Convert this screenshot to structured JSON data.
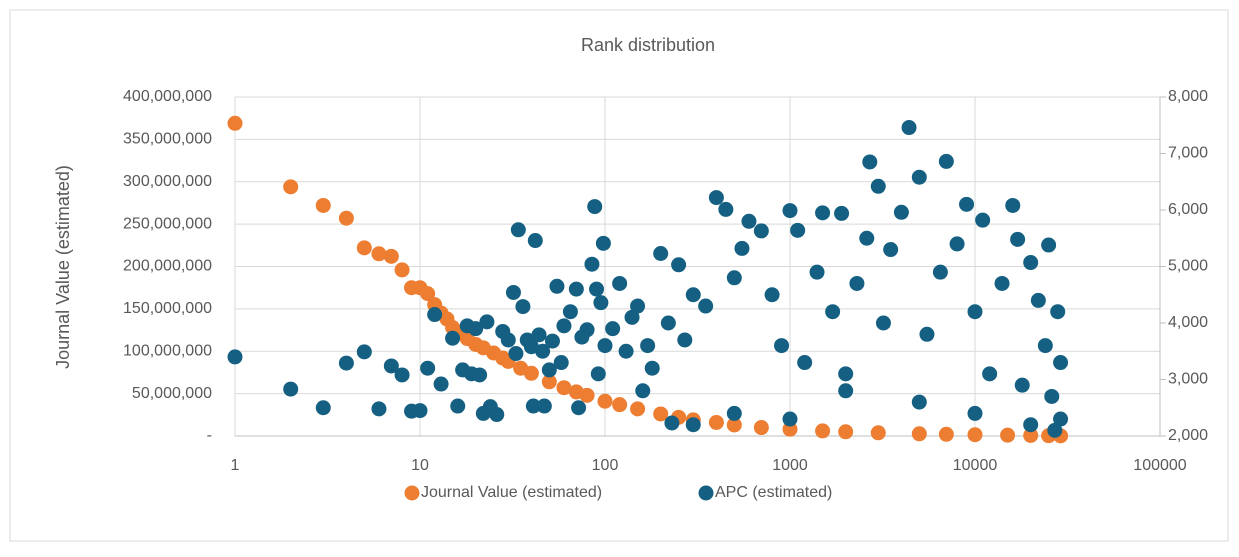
{
  "chart_data": {
    "type": "scatter",
    "title": "Rank distribution",
    "ylabel": "Journal Value (estimated)",
    "xlim": [
      1,
      100000
    ],
    "xscale": "log",
    "xticks": [
      1,
      10,
      100,
      1000,
      10000,
      100000
    ],
    "ylim": [
      0,
      400000000
    ],
    "yticks": [
      {
        "value": 0,
        "label": "-"
      },
      {
        "value": 50000000,
        "label": "50,000,000"
      },
      {
        "value": 100000000,
        "label": "100,000,000"
      },
      {
        "value": 150000000,
        "label": "150,000,000"
      },
      {
        "value": 200000000,
        "label": "200,000,000"
      },
      {
        "value": 250000000,
        "label": "250,000,000"
      },
      {
        "value": 300000000,
        "label": "300,000,000"
      },
      {
        "value": 350000000,
        "label": "350,000,000"
      },
      {
        "value": 400000000,
        "label": "400,000,000"
      }
    ],
    "y2lim": [
      2000,
      8000
    ],
    "y2ticks": [
      {
        "value": 2000,
        "label": "2,000"
      },
      {
        "value": 3000,
        "label": "3,000"
      },
      {
        "value": 4000,
        "label": "4,000"
      },
      {
        "value": 5000,
        "label": "5,000"
      },
      {
        "value": 6000,
        "label": "6,000"
      },
      {
        "value": 7000,
        "label": "7,000"
      },
      {
        "value": 8000,
        "label": "8,000"
      }
    ],
    "grid": true,
    "legend": "bottom",
    "series": [
      {
        "name": "Journal Value (estimated)",
        "color": "#ED7D31",
        "axis": "y",
        "x": [
          1,
          2,
          3,
          4,
          5,
          6,
          7,
          8,
          9,
          10,
          11,
          12,
          13,
          14,
          15,
          16,
          18,
          20,
          22,
          25,
          28,
          30,
          35,
          40,
          50,
          60,
          70,
          80,
          100,
          120,
          150,
          200,
          250,
          300,
          400,
          500,
          700,
          1000,
          1500,
          2000,
          3000,
          5000,
          7000,
          10000,
          15000,
          20000,
          25000,
          29000
        ],
        "values": [
          369000000,
          294000000,
          272000000,
          257000000,
          222000000,
          215000000,
          212000000,
          196000000,
          175000000,
          175000000,
          168000000,
          155000000,
          145000000,
          138000000,
          128000000,
          122000000,
          115000000,
          108000000,
          104000000,
          98000000,
          92000000,
          88000000,
          80000000,
          74000000,
          64000000,
          57000000,
          52000000,
          48000000,
          41000000,
          37000000,
          32000000,
          26000000,
          22000000,
          19000000,
          16000000,
          13000000,
          10000000,
          8000000,
          6000000,
          5000000,
          3800000,
          2600000,
          2000000,
          1500000,
          1000000,
          700000,
          400000,
          200000
        ]
      },
      {
        "name": "APC (estimated)",
        "color": "#156082",
        "axis": "y2",
        "x": [
          1,
          2,
          3,
          4,
          5,
          6,
          7,
          8,
          9,
          10,
          11,
          12,
          13,
          15,
          16,
          17,
          18,
          19,
          20,
          21,
          22,
          23,
          24,
          26,
          28,
          30,
          32,
          33,
          34,
          36,
          38,
          40,
          41,
          42,
          44,
          46,
          47,
          50,
          52,
          55,
          58,
          60,
          65,
          70,
          72,
          75,
          80,
          85,
          88,
          90,
          92,
          95,
          98,
          100,
          110,
          120,
          130,
          140,
          150,
          160,
          170,
          180,
          200,
          220,
          250,
          270,
          300,
          350,
          400,
          450,
          500,
          550,
          600,
          700,
          800,
          900,
          1000,
          1100,
          1200,
          1400,
          1500,
          1700,
          1900,
          2000,
          2300,
          2600,
          2700,
          3000,
          3200,
          3500,
          4000,
          4400,
          5000,
          5500,
          6500,
          7000,
          8000,
          9000,
          10000,
          11000,
          12000,
          14000,
          16000,
          17000,
          18000,
          20000,
          22000,
          24000,
          25000,
          26000,
          28000,
          29000,
          29000,
          27000,
          20000,
          10000,
          5000,
          2000,
          1000,
          500,
          300,
          230
        ],
        "values": [
          3400,
          2830,
          2500,
          3290,
          3490,
          2480,
          3240,
          3080,
          2440,
          2450,
          3200,
          4150,
          2920,
          3730,
          2530,
          3170,
          3950,
          3100,
          3900,
          3080,
          2400,
          4020,
          2520,
          2380,
          3850,
          3700,
          4540,
          3460,
          5650,
          4290,
          3700,
          3580,
          2530,
          5460,
          3790,
          3500,
          2530,
          3170,
          3680,
          4650,
          3300,
          3950,
          4200,
          4600,
          2500,
          3750,
          3880,
          5040,
          6060,
          4600,
          3100,
          4360,
          5410,
          3600,
          3900,
          4700,
          3500,
          4100,
          4300,
          2800,
          3600,
          3200,
          5230,
          4000,
          5030,
          3700,
          4500,
          4300,
          6220,
          6010,
          4800,
          5320,
          5800,
          5630,
          4500,
          3600,
          5990,
          5640,
          3300,
          4900,
          5950,
          4200,
          5940,
          3100,
          4700,
          5500,
          6850,
          6420,
          4000,
          5300,
          5960,
          7460,
          6580,
          3800,
          4900,
          6860,
          5400,
          6100,
          4200,
          5820,
          3100,
          4700,
          6080,
          5480,
          2900,
          5070,
          4400,
          3600,
          5380,
          2700,
          4200,
          3300,
          2300,
          2100,
          2200,
          2400,
          2600,
          2800,
          2300,
          2400,
          2200,
          2230
        ]
      }
    ]
  }
}
